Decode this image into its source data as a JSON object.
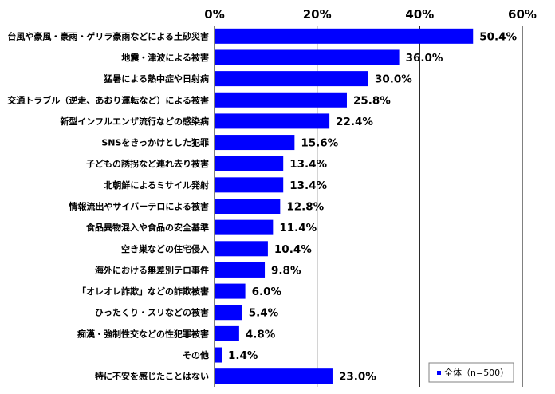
{
  "chart_data": {
    "type": "bar",
    "orientation": "horizontal",
    "categories": [
      "台風や豪風・豪雨・ゲリラ豪雨などによる土砂災害",
      "地震・津波による被害",
      "猛暑による熱中症や日射病",
      "交通トラブル（逆走、あおり運転など）による被害",
      "新型インフルエンザ流行などの感染病",
      "SNSをきっかけとした犯罪",
      "子どもの誘拐など連れ去り被害",
      "北朝鮮によるミサイル発射",
      "情報流出やサイバーテロによる被害",
      "食品異物混入や食品の安全基準",
      "空き巣などの住宅侵入",
      "海外における無差別テロ事件",
      "「オレオレ詐欺」などの詐欺被害",
      "ひったくり・スリなどの被害",
      "痴漢・強制性交などの性犯罪被害",
      "その他",
      "特に不安を感じたことはない"
    ],
    "series": [
      {
        "name": "全体（n=500）",
        "values": [
          50.4,
          36.0,
          30.0,
          25.8,
          22.4,
          15.6,
          13.4,
          13.4,
          12.8,
          11.4,
          10.4,
          9.8,
          6.0,
          5.4,
          4.8,
          1.4,
          23.0
        ],
        "value_labels": [
          "50.4%",
          "36.0%",
          "30.0%",
          "25.8%",
          "22.4%",
          "15.6%",
          "13.4%",
          "13.4%",
          "12.8%",
          "11.4%",
          "10.4%",
          "9.8%",
          "6.0%",
          "5.4%",
          "4.8%",
          "1.4%",
          "23.0%"
        ],
        "color": "#0000ff"
      }
    ],
    "x_ticks": [
      "0%",
      "20%",
      "40%",
      "60%"
    ],
    "xlim": [
      0,
      60
    ],
    "grid": true,
    "legend": {
      "placement": "bottom-right",
      "label": "全体（n=500）"
    }
  }
}
